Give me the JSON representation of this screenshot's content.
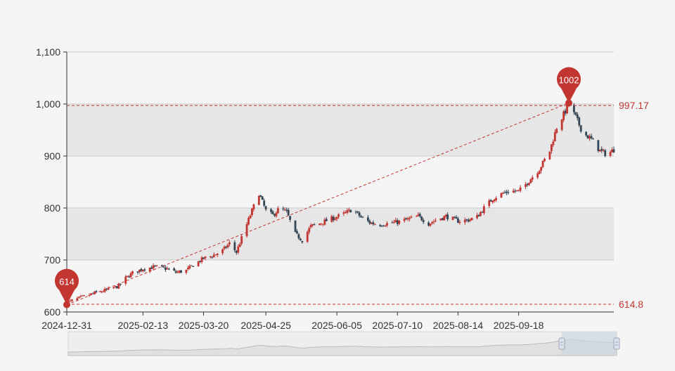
{
  "colors": {
    "background": "#f5f5f5",
    "band": "#e6e6e6",
    "up": "#c23531",
    "down": "#314656",
    "marker": "#c23531",
    "markline": "#c23531",
    "axis": "#333333",
    "gridline": "#cccccc",
    "zoom_fill": "#c9d3e0",
    "zoom_line": "#9aa5b8"
  },
  "chart_data": {
    "type": "candlestick",
    "title": "",
    "xlabel": "",
    "ylabel": "",
    "ylim": [
      600,
      1100
    ],
    "y_ticks": [
      600,
      700,
      800,
      900,
      1000,
      1100
    ],
    "y_tick_labels": [
      "600",
      "700",
      "800",
      "900",
      "1,000",
      "1,100"
    ],
    "x_ticks": [
      "2024-12-31",
      "2025-02-13",
      "2025-03-20",
      "2025-04-25",
      "2025-06-05",
      "2025-07-10",
      "2025-08-14",
      "2025-09-18"
    ],
    "x_range": [
      "2024-12-31",
      "2025-11-12"
    ],
    "grid": "alternating horizontal bands",
    "close_path": [
      [
        "2024-12-31",
        618
      ],
      [
        "2025-01-06",
        625
      ],
      [
        "2025-01-12",
        632
      ],
      [
        "2025-01-18",
        638
      ],
      [
        "2025-01-24",
        643
      ],
      [
        "2025-01-30",
        650
      ],
      [
        "2025-02-03",
        665
      ],
      [
        "2025-02-07",
        675
      ],
      [
        "2025-02-13",
        683
      ],
      [
        "2025-02-20",
        687
      ],
      [
        "2025-02-27",
        683
      ],
      [
        "2025-03-04",
        676
      ],
      [
        "2025-03-10",
        680
      ],
      [
        "2025-03-14",
        690
      ],
      [
        "2025-03-20",
        703
      ],
      [
        "2025-03-25",
        708
      ],
      [
        "2025-03-31",
        718
      ],
      [
        "2025-04-04",
        732
      ],
      [
        "2025-04-08",
        715
      ],
      [
        "2025-04-13",
        760
      ],
      [
        "2025-04-17",
        795
      ],
      [
        "2025-04-21",
        828
      ],
      [
        "2025-04-25",
        795
      ],
      [
        "2025-04-29",
        786
      ],
      [
        "2025-05-03",
        800
      ],
      [
        "2025-05-07",
        792
      ],
      [
        "2025-05-12",
        750
      ],
      [
        "2025-05-16",
        738
      ],
      [
        "2025-05-21",
        765
      ],
      [
        "2025-05-26",
        770
      ],
      [
        "2025-05-31",
        777
      ],
      [
        "2025-06-05",
        783
      ],
      [
        "2025-06-10",
        790
      ],
      [
        "2025-06-14",
        798
      ],
      [
        "2025-06-19",
        782
      ],
      [
        "2025-06-24",
        772
      ],
      [
        "2025-06-29",
        768
      ],
      [
        "2025-07-04",
        770
      ],
      [
        "2025-07-10",
        773
      ],
      [
        "2025-07-16",
        778
      ],
      [
        "2025-07-22",
        784
      ],
      [
        "2025-07-28",
        770
      ],
      [
        "2025-08-02",
        778
      ],
      [
        "2025-08-07",
        784
      ],
      [
        "2025-08-14",
        775
      ],
      [
        "2025-08-20",
        777
      ],
      [
        "2025-08-25",
        783
      ],
      [
        "2025-08-29",
        800
      ],
      [
        "2025-09-03",
        818
      ],
      [
        "2025-09-08",
        827
      ],
      [
        "2025-09-13",
        833
      ],
      [
        "2025-09-18",
        832
      ],
      [
        "2025-09-22",
        845
      ],
      [
        "2025-09-26",
        860
      ],
      [
        "2025-09-30",
        875
      ],
      [
        "2025-10-06",
        910
      ],
      [
        "2025-10-10",
        955
      ],
      [
        "2025-10-14",
        980
      ],
      [
        "2025-10-17",
        998
      ],
      [
        "2025-10-21",
        975
      ],
      [
        "2025-10-25",
        945
      ],
      [
        "2025-10-30",
        932
      ],
      [
        "2025-11-04",
        910
      ],
      [
        "2025-11-08",
        903
      ],
      [
        "2025-11-12",
        912
      ]
    ],
    "mark_points": [
      {
        "label": "1002",
        "date": "2025-10-17",
        "value": 1002,
        "type": "max"
      },
      {
        "label": "614",
        "date": "2024-12-31",
        "value": 614,
        "type": "min"
      }
    ],
    "mark_lines": [
      {
        "label": "997.17",
        "value": 997.17
      },
      {
        "label": "614.8",
        "value": 614.8
      }
    ],
    "trend_line": {
      "from": [
        "2024-12-31",
        614
      ],
      "to": [
        "2025-10-17",
        1002
      ]
    },
    "data_zoom": {
      "start_percent": 90,
      "end_percent": 100
    }
  }
}
